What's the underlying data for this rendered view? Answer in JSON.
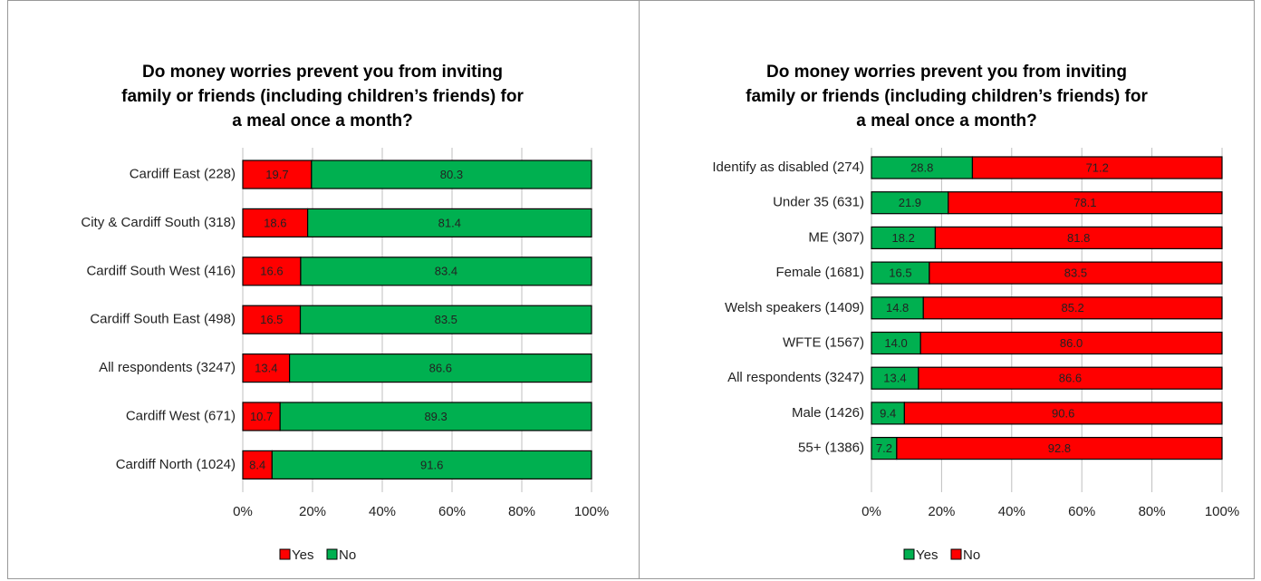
{
  "chart_data": [
    {
      "type": "bar",
      "orientation": "horizontal",
      "stacked": true,
      "title": [
        "Do money worries prevent you from inviting",
        "family or friends (including children’s friends) for",
        "a meal once a month?"
      ],
      "categories": [
        "Cardiff East (228)",
        "City & Cardiff South (318)",
        "Cardiff South West (416)",
        "Cardiff South East (498)",
        "All respondents (3247)",
        "Cardiff West (671)",
        "Cardiff North (1024)"
      ],
      "series": [
        {
          "name": "Yes",
          "color": "#ff0000",
          "values": [
            19.7,
            18.6,
            16.6,
            16.5,
            13.4,
            10.7,
            8.4
          ]
        },
        {
          "name": "No",
          "color": "#00b050",
          "values": [
            80.3,
            81.4,
            83.4,
            83.5,
            86.6,
            89.3,
            91.6
          ]
        }
      ],
      "xlim": [
        0,
        100
      ],
      "xticks": [
        {
          "value": 0,
          "label": "0%"
        },
        {
          "value": 20,
          "label": "20%"
        },
        {
          "value": 40,
          "label": "40%"
        },
        {
          "value": 60,
          "label": "60%"
        },
        {
          "value": 80,
          "label": "80%"
        },
        {
          "value": 100,
          "label": "100%"
        }
      ],
      "grid": true,
      "legend": "bottom"
    },
    {
      "type": "bar",
      "orientation": "horizontal",
      "stacked": true,
      "title": [
        "Do money worries prevent you from inviting",
        "family or friends (including children’s friends) for",
        "a meal once a month?"
      ],
      "categories": [
        "Identify as disabled (274)",
        "Under 35 (631)",
        "ME (307)",
        "Female (1681)",
        "Welsh speakers (1409)",
        "WFTE (1567)",
        "All respondents (3247)",
        "Male (1426)",
        "55+ (1386)"
      ],
      "series": [
        {
          "name": "Yes",
          "color": "#00b050",
          "values": [
            28.8,
            21.9,
            18.2,
            16.5,
            14.8,
            14,
            13.4,
            9.4,
            7.2
          ],
          "value_labels": [
            "28.8",
            "21.9",
            "18.2",
            "16.5",
            "14.8",
            "14.0",
            "13.4",
            "9.4",
            "7.2"
          ]
        },
        {
          "name": "No",
          "color": "#ff0000",
          "values": [
            71.2,
            78.1,
            81.8,
            83.5,
            85.2,
            86,
            86.6,
            90.6,
            92.8
          ],
          "value_labels": [
            "71.2",
            "78.1",
            "81.8",
            "83.5",
            "85.2",
            "86.0",
            "86.6",
            "90.6",
            "92.8"
          ]
        }
      ],
      "xlim": [
        0,
        100
      ],
      "xticks": [
        {
          "value": 0,
          "label": "0%"
        },
        {
          "value": 20,
          "label": "20%"
        },
        {
          "value": 40,
          "label": "40%"
        },
        {
          "value": 60,
          "label": "60%"
        },
        {
          "value": 80,
          "label": "80%"
        },
        {
          "value": 100,
          "label": "100%"
        }
      ],
      "grid": true,
      "legend": "bottom"
    }
  ]
}
